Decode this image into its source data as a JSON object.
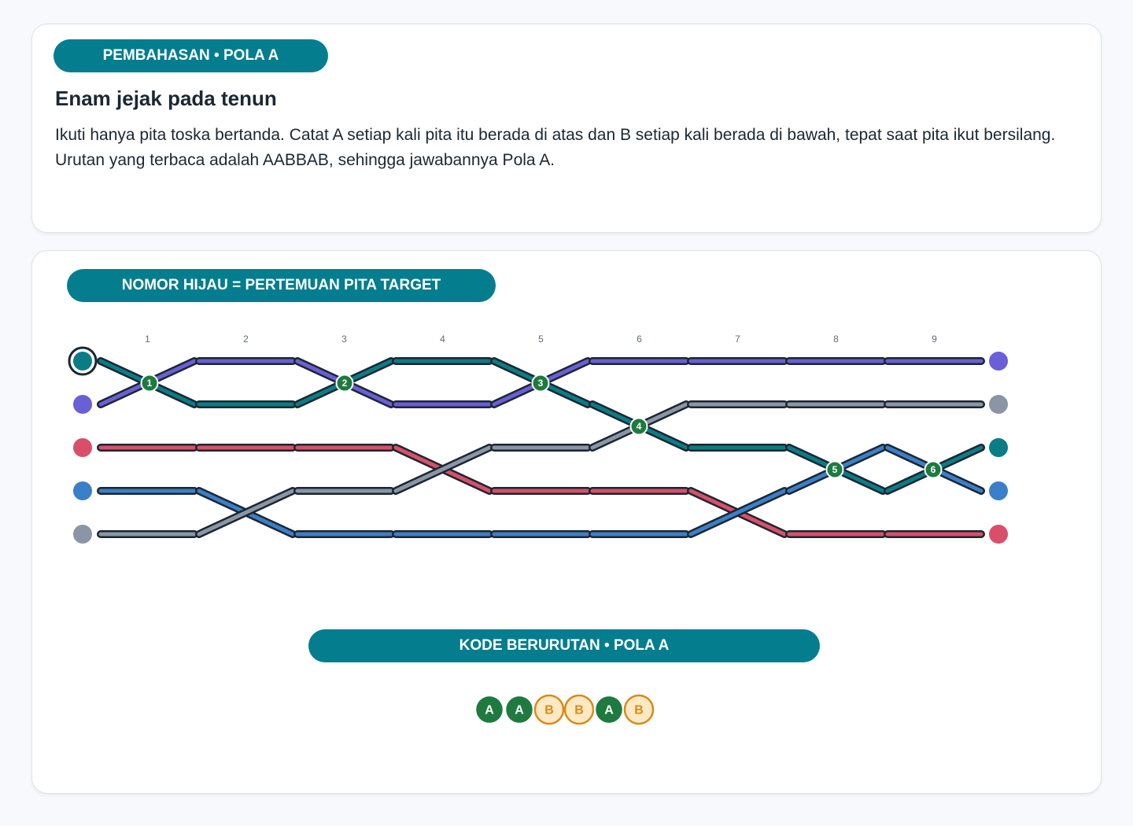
{
  "header": {
    "badge": "PEMBAHASAN • POLA A",
    "title": "Enam jejak pada tenun",
    "text": "Ikuti hanya pita toska bertanda. Catat A setiap kali pita itu berada di atas dan B setiap kali berada di bawah, tepat saat pita ikut bersilang. Urutan yang terbaca adalah AABBAB, sehingga jawabannya Pola A."
  },
  "diagram": {
    "badge": "NOMOR HIJAU = PERTEMUAN PITA TARGET",
    "columns": [
      "1",
      "2",
      "3",
      "4",
      "5",
      "6",
      "7",
      "8",
      "9"
    ],
    "crossings": [
      "1",
      "2",
      "3",
      "4",
      "5",
      "6"
    ]
  },
  "code": {
    "badge": "KODE BERURUTAN • POLA A",
    "letters": [
      "A",
      "A",
      "B",
      "B",
      "A",
      "B"
    ]
  }
}
